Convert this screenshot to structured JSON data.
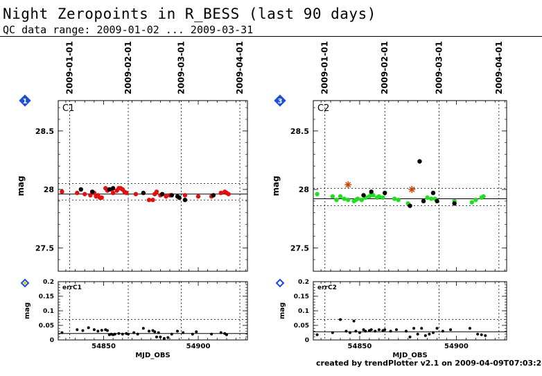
{
  "header": {
    "title": "Night Zeropoints in R_BESS (last 90 days)",
    "subtitle": "QC data range: 2009-01-02 ... 2009-03-31"
  },
  "footer": "created by trendPlotter v2.1 on 2009-04-09T07:03:28",
  "colors": {
    "red": "#e01010",
    "green": "#22dd22",
    "black": "#000000",
    "star": "#cc4400",
    "badge": "#1a4fd8"
  },
  "chart_data": [
    {
      "type": "scatter",
      "panel": "C1",
      "badge": "1",
      "ylabel": "mag",
      "xlim": [
        54826,
        54926
      ],
      "ylim": [
        27.3,
        28.76
      ],
      "yticks": [
        "27.5",
        "28",
        "28.5"
      ],
      "date_ticks": [
        {
          "label": "2009-01-01",
          "mjd": 54832
        },
        {
          "label": "2009-02-01",
          "mjd": 54863
        },
        {
          "label": "2009-03-01",
          "mjd": 54891
        },
        {
          "label": "2009-04-01",
          "mjd": 54922
        }
      ],
      "ref_line": 27.96,
      "band": [
        27.91,
        28.05
      ],
      "series": [
        {
          "color": "red",
          "points": [
            [
              54828,
              27.98
            ],
            [
              54836,
              27.97
            ],
            [
              54840,
              27.96
            ],
            [
              54843,
              27.95
            ],
            [
              54845,
              27.97
            ],
            [
              54846,
              27.94
            ],
            [
              54847,
              27.95
            ],
            [
              54848,
              27.93
            ],
            [
              54849,
              27.93
            ],
            [
              54851,
              28.01
            ],
            [
              54852,
              27.99
            ],
            [
              54854,
              28.0
            ],
            [
              54855,
              27.97
            ],
            [
              54857,
              27.99
            ],
            [
              54858,
              28.01
            ],
            [
              54859,
              28.01
            ],
            [
              54860,
              28.0
            ],
            [
              54861,
              27.98
            ],
            [
              54862,
              27.97
            ],
            [
              54867,
              27.96
            ],
            [
              54874,
              27.91
            ],
            [
              54876,
              27.91
            ],
            [
              54877,
              27.96
            ],
            [
              54878,
              27.98
            ],
            [
              54880,
              27.95
            ],
            [
              54883,
              27.94
            ],
            [
              54885,
              27.95
            ],
            [
              54893,
              27.95
            ],
            [
              54900,
              27.94
            ],
            [
              54907,
              27.94
            ],
            [
              54912,
              27.97
            ],
            [
              54914,
              27.98
            ],
            [
              54915,
              27.97
            ],
            [
              54916,
              27.96
            ]
          ]
        },
        {
          "color": "black",
          "points": [
            [
              54838,
              28.0
            ],
            [
              54844,
              27.98
            ],
            [
              54853,
              28.0
            ],
            [
              54855,
              28.01
            ],
            [
              54871,
              27.97
            ],
            [
              54881,
              27.96
            ],
            [
              54886,
              27.95
            ],
            [
              54889,
              27.94
            ],
            [
              54890,
              27.93
            ],
            [
              54893,
              27.91
            ],
            [
              54908,
              27.95
            ]
          ]
        }
      ]
    },
    {
      "type": "scatter",
      "panel": "C2",
      "badge": "3",
      "ylabel": "mag",
      "xlim": [
        54826,
        54926
      ],
      "ylim": [
        27.3,
        28.76
      ],
      "yticks": [
        "27.5",
        "28",
        "28.5"
      ],
      "date_ticks": [
        {
          "label": "2009-01-01",
          "mjd": 54832
        },
        {
          "label": "2009-02-01",
          "mjd": 54863
        },
        {
          "label": "2009-03-01",
          "mjd": 54891
        },
        {
          "label": "2009-04-01",
          "mjd": 54922
        }
      ],
      "ref_line": 27.92,
      "band": [
        27.86,
        28.01
      ],
      "series": [
        {
          "color": "green",
          "points": [
            [
              54828,
              27.96
            ],
            [
              54836,
              27.94
            ],
            [
              54838,
              27.91
            ],
            [
              54840,
              27.94
            ],
            [
              54842,
              27.92
            ],
            [
              54844,
              27.91
            ],
            [
              54847,
              27.9
            ],
            [
              54848,
              27.91
            ],
            [
              54849,
              27.92
            ],
            [
              54851,
              27.91
            ],
            [
              54853,
              27.93
            ],
            [
              54855,
              27.94
            ],
            [
              54856,
              27.96
            ],
            [
              54857,
              27.95
            ],
            [
              54859,
              27.93
            ],
            [
              54860,
              27.94
            ],
            [
              54862,
              27.93
            ],
            [
              54868,
              27.92
            ],
            [
              54870,
              27.91
            ],
            [
              54875,
              27.88
            ],
            [
              54883,
              27.9
            ],
            [
              54885,
              27.93
            ],
            [
              54887,
              27.92
            ],
            [
              54889,
              27.92
            ],
            [
              54899,
              27.9
            ],
            [
              54908,
              27.89
            ],
            [
              54910,
              27.91
            ],
            [
              54913,
              27.93
            ],
            [
              54914,
              27.94
            ]
          ]
        },
        {
          "color": "black",
          "points": [
            [
              54852,
              27.95
            ],
            [
              54856,
              27.98
            ],
            [
              54863,
              27.97
            ],
            [
              54876,
              27.86
            ],
            [
              54881,
              28.24
            ],
            [
              54883,
              27.9
            ],
            [
              54888,
              27.97
            ],
            [
              54890,
              27.9
            ],
            [
              54899,
              27.88
            ]
          ]
        },
        {
          "color": "star",
          "marker": "star",
          "points": [
            [
              54844,
              28.04
            ],
            [
              54877,
              28.0
            ]
          ]
        }
      ]
    },
    {
      "type": "scatter",
      "panel": "errC1",
      "badge": "",
      "ylabel": "mag",
      "xlabel": "MJD_OBS",
      "xlim": [
        54826,
        54926
      ],
      "ylim": [
        0,
        0.2
      ],
      "yticks": [
        "0",
        "0.05",
        "0.1",
        "0.15",
        "0.2"
      ],
      "xticks": [
        "54850",
        "54900"
      ],
      "ref_line": 0.022,
      "band": [
        null,
        0.07
      ],
      "series": [
        {
          "color": "black",
          "points": [
            [
              54828,
              0.025
            ],
            [
              54836,
              0.035
            ],
            [
              54839,
              0.032
            ],
            [
              54842,
              0.042
            ],
            [
              54845,
              0.035
            ],
            [
              54847,
              0.03
            ],
            [
              54849,
              0.033
            ],
            [
              54851,
              0.035
            ],
            [
              54852,
              0.032
            ],
            [
              54853,
              0.018
            ],
            [
              54854,
              0.02
            ],
            [
              54855,
              0.018
            ],
            [
              54856,
              0.02
            ],
            [
              54858,
              0.022
            ],
            [
              54860,
              0.02
            ],
            [
              54862,
              0.022
            ],
            [
              54863,
              0.02
            ],
            [
              54866,
              0.025
            ],
            [
              54868,
              0.02
            ],
            [
              54871,
              0.04
            ],
            [
              54874,
              0.03
            ],
            [
              54876,
              0.032
            ],
            [
              54877,
              0.028
            ],
            [
              54878,
              0.01
            ],
            [
              54879,
              0.025
            ],
            [
              54880,
              0.01
            ],
            [
              54882,
              0.005
            ],
            [
              54884,
              0.008
            ],
            [
              54886,
              0.02
            ],
            [
              54889,
              0.03
            ],
            [
              54892,
              0.025
            ],
            [
              54897,
              0.02
            ],
            [
              54899,
              0.028
            ],
            [
              54907,
              0.02
            ],
            [
              54912,
              0.025
            ],
            [
              54914,
              0.022
            ],
            [
              54915,
              0.018
            ]
          ]
        }
      ]
    },
    {
      "type": "scatter",
      "panel": "errC2",
      "badge": "",
      "ylabel": "mag",
      "xlabel": "MJD_OBS",
      "xlim": [
        54826,
        54926
      ],
      "ylim": [
        0,
        0.2
      ],
      "yticks": [
        "0",
        "0.05",
        "0.1",
        "0.15",
        "0.2"
      ],
      "xticks": [
        "54850",
        "54900"
      ],
      "ref_line": 0.028,
      "band": [
        null,
        0.07
      ],
      "series": [
        {
          "color": "black",
          "points": [
            [
              54828,
              0.018
            ],
            [
              54836,
              0.025
            ],
            [
              54840,
              0.07
            ],
            [
              54843,
              0.03
            ],
            [
              54845,
              0.025
            ],
            [
              54847,
              0.065
            ],
            [
              54848,
              0.03
            ],
            [
              54850,
              0.025
            ],
            [
              54852,
              0.035
            ],
            [
              54853,
              0.03
            ],
            [
              54855,
              0.032
            ],
            [
              54856,
              0.035
            ],
            [
              54858,
              0.03
            ],
            [
              54860,
              0.035
            ],
            [
              54862,
              0.032
            ],
            [
              54863,
              0.035
            ],
            [
              54866,
              0.03
            ],
            [
              54869,
              0.035
            ],
            [
              54874,
              0.03
            ],
            [
              54876,
              0.01
            ],
            [
              54878,
              0.04
            ],
            [
              54880,
              0.02
            ],
            [
              54882,
              0.04
            ],
            [
              54884,
              0.015
            ],
            [
              54886,
              0.02
            ],
            [
              54888,
              0.025
            ],
            [
              54890,
              0.04
            ],
            [
              54893,
              0.03
            ],
            [
              54897,
              0.035
            ],
            [
              54907,
              0.04
            ],
            [
              54911,
              0.02
            ],
            [
              54913,
              0.018
            ],
            [
              54915,
              0.015
            ]
          ]
        }
      ]
    }
  ]
}
